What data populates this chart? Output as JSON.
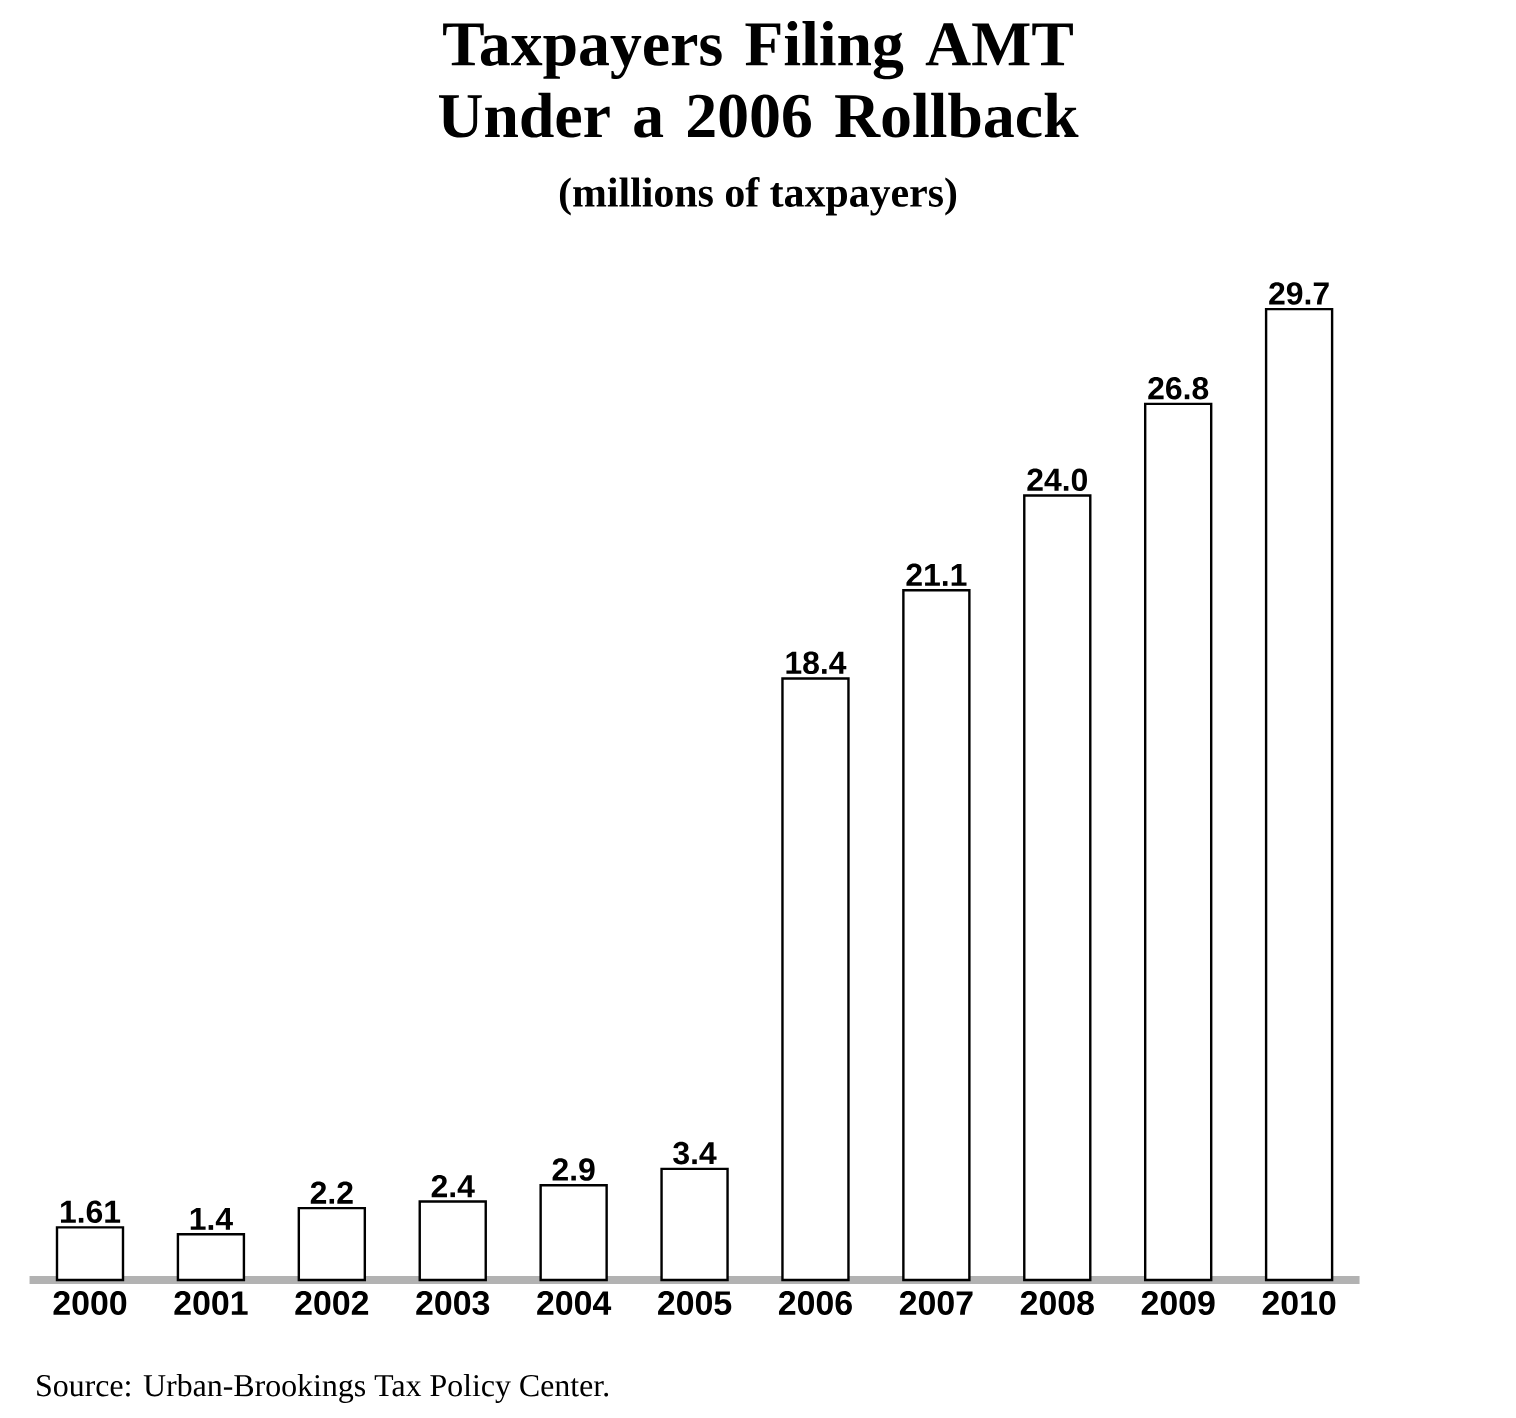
{
  "chart_data": {
    "type": "bar",
    "title": "Taxpayers Filing AMT Under a 2006 Rollback",
    "subtitle": "(millions of taxpayers)",
    "categories": [
      "2000",
      "2001",
      "2002",
      "2003",
      "2004",
      "2005",
      "2006",
      "2007",
      "2008",
      "2009",
      "2010"
    ],
    "values": [
      1.61,
      1.4,
      2.2,
      2.4,
      2.9,
      3.4,
      18.4,
      21.1,
      24.0,
      26.8,
      29.7
    ],
    "value_labels": [
      "1.61",
      "1.4",
      "2.2",
      "2.4",
      "2.9",
      "3.4",
      "18.4",
      "21.1",
      "24.0",
      "26.8",
      "29.7"
    ],
    "color": "#ffffff",
    "tick_labels": "x",
    "annotations": [
      "Source:  Urban-Brookings Tax Policy Center."
    ]
  }
}
